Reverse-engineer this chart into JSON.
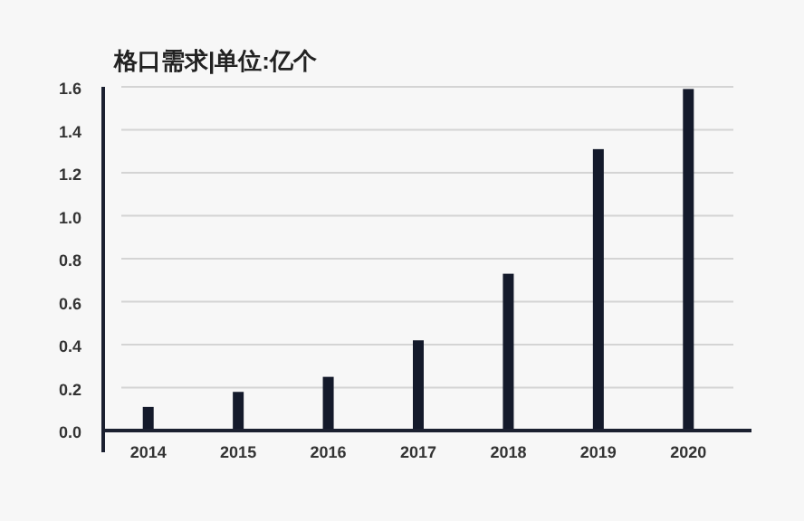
{
  "chart_data": {
    "type": "bar",
    "title": "格口需求|单位:亿个",
    "categories": [
      "2014",
      "2015",
      "2016",
      "2017",
      "2018",
      "2019",
      "2020"
    ],
    "values": [
      0.11,
      0.18,
      0.25,
      0.42,
      0.73,
      1.31,
      1.59
    ],
    "color": "#141a2b",
    "ylim": [
      0,
      1.6
    ],
    "yticks": [
      {
        "value": 0,
        "label": "0.0"
      },
      0.2,
      0.4,
      0.6,
      0.8,
      {
        "value": 1,
        "label": "1.0"
      },
      1.2,
      1.4,
      1.6
    ],
    "grid": "y"
  }
}
